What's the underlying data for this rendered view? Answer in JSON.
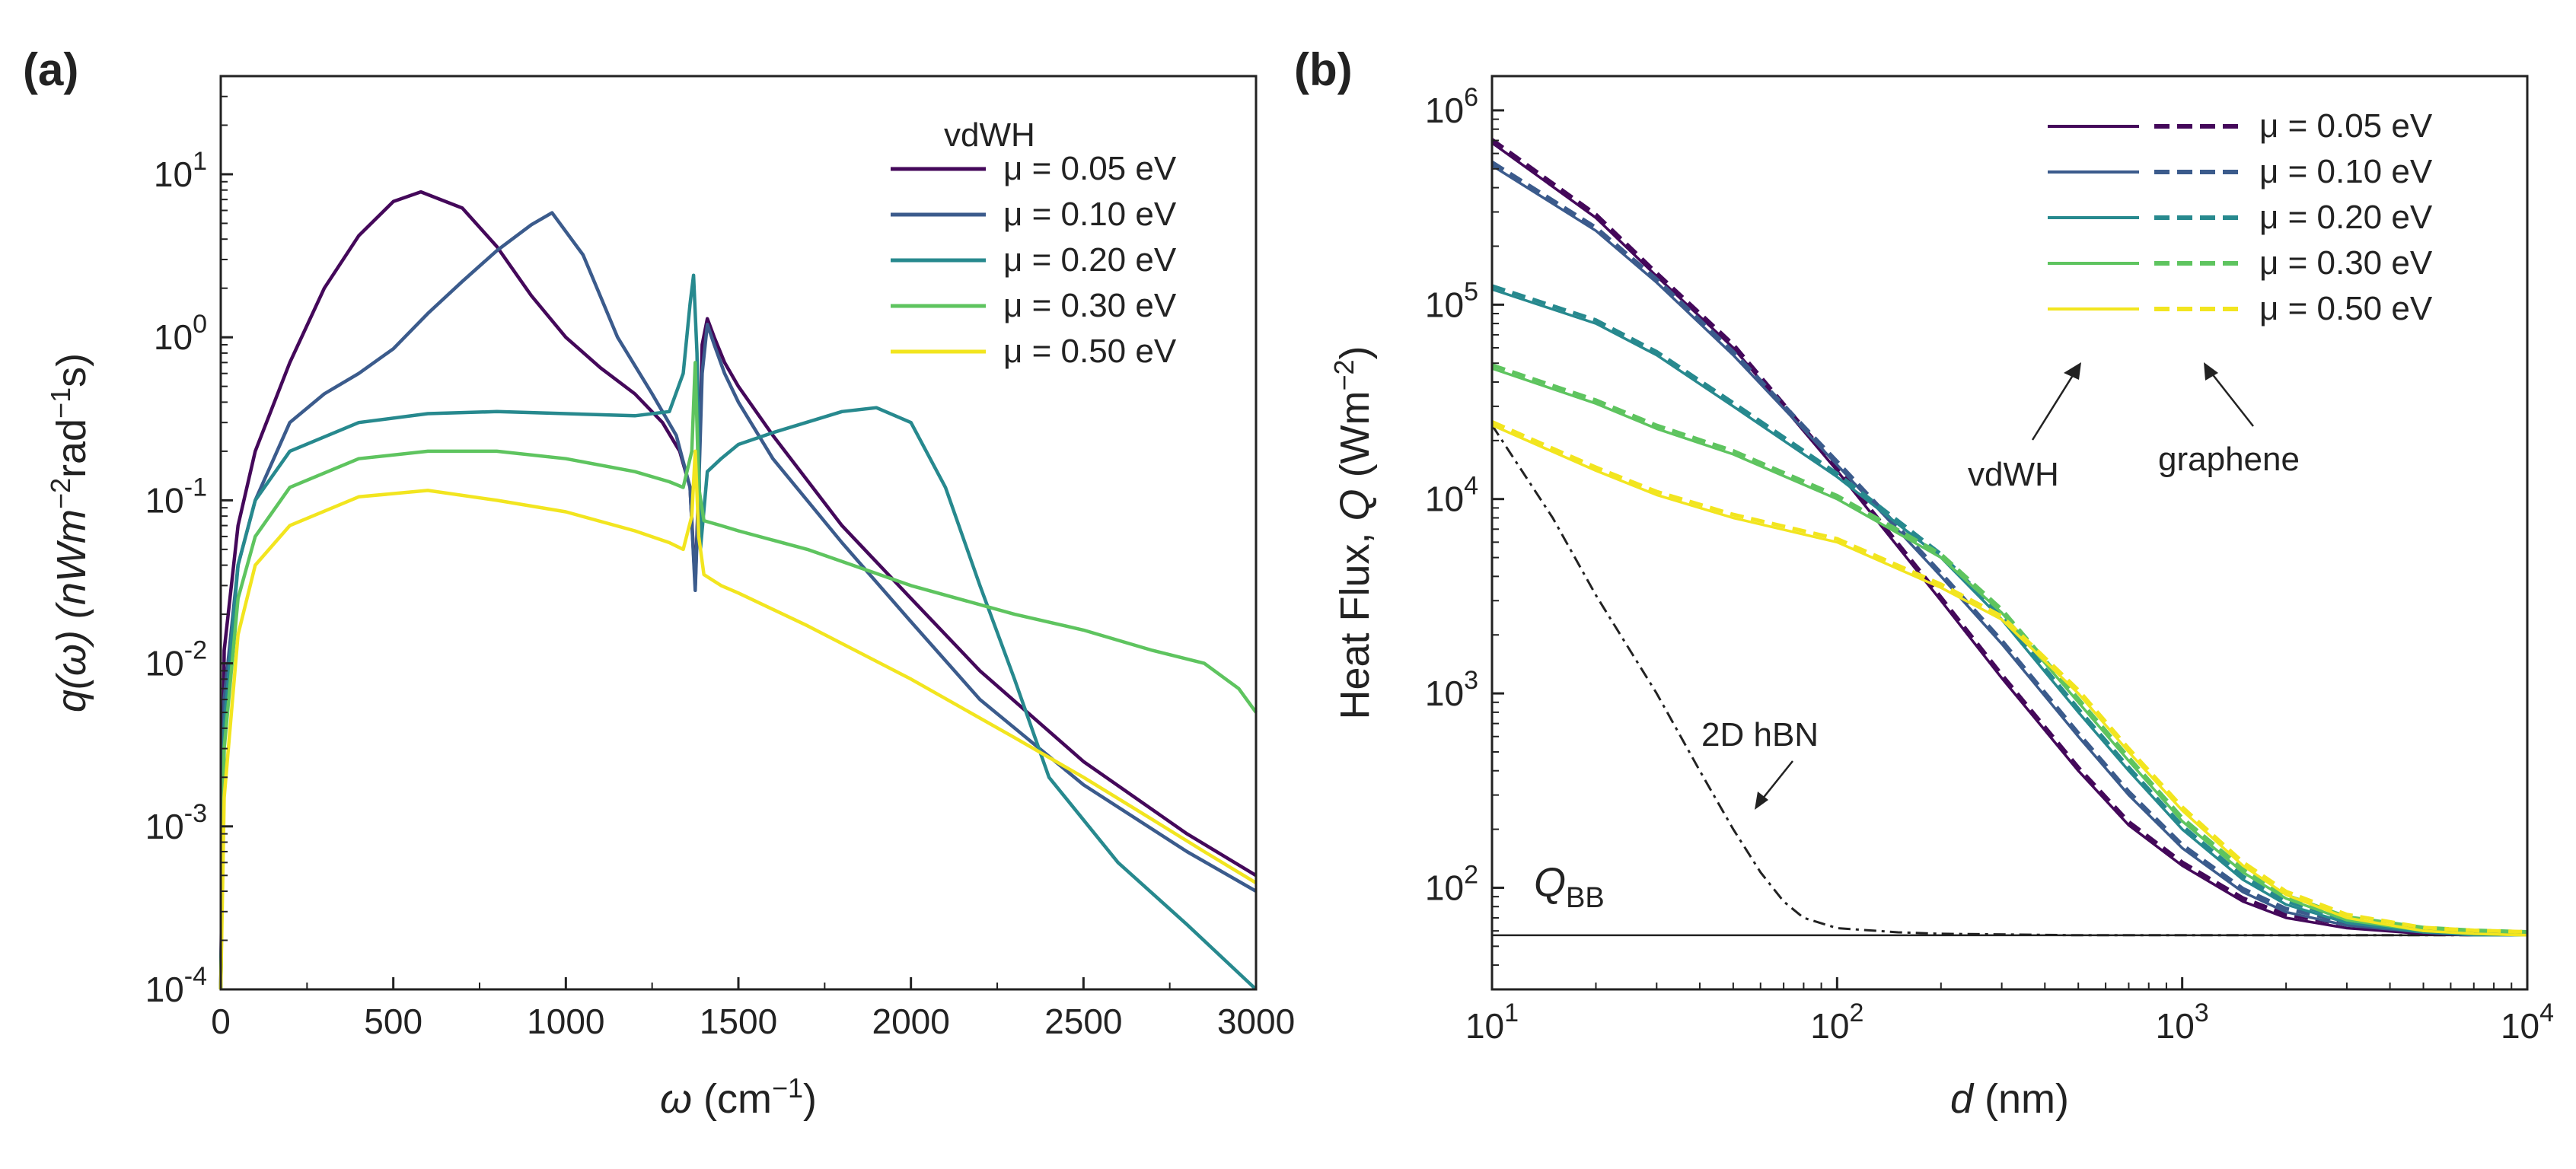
{
  "figure": {
    "panel_a_label": "(a)",
    "panel_b_label": "(b)"
  },
  "chart_data": [
    {
      "id": "a",
      "type": "line",
      "ylog": true,
      "xlabel": {
        "sym": "ω",
        "text": " (cm",
        "sup": "−1",
        "end": ")"
      },
      "ylabel": {
        "pre": "q(ω) (nWm",
        "sup1": "−2",
        "mid": "rad",
        "sup2": "−1",
        "end": "s)"
      },
      "xlim": [
        0,
        3000
      ],
      "ylim": [
        0.0001,
        40
      ],
      "xticks": [
        0,
        500,
        1000,
        1500,
        2000,
        2500,
        3000
      ],
      "xtick_labels": [
        "0",
        "500",
        "1000",
        "1500",
        "2000",
        "2500",
        "3000"
      ],
      "yticks": [
        0.0001,
        0.001,
        0.01,
        0.1,
        1,
        10
      ],
      "ytick_labels": [
        {
          "base": "10",
          "exp": "-4"
        },
        {
          "base": "10",
          "exp": "-3"
        },
        {
          "base": "10",
          "exp": "-2"
        },
        {
          "base": "10",
          "exp": "-1"
        },
        {
          "base": "10",
          "exp": "0"
        },
        {
          "base": "10",
          "exp": "1"
        }
      ],
      "legend_title": "vdWH",
      "series": [
        {
          "name": "μ = 0.05 eV",
          "color": "#44085a",
          "x": [
            0,
            10,
            50,
            100,
            200,
            300,
            400,
            500,
            580,
            700,
            800,
            900,
            1000,
            1100,
            1200,
            1280,
            1330,
            1360,
            1375,
            1385,
            1395,
            1410,
            1430,
            1460,
            1500,
            1600,
            1800,
            2000,
            2200,
            2500,
            2800,
            3000
          ],
          "y": [
            0.0001,
            0.012,
            0.07,
            0.2,
            0.7,
            2,
            4.2,
            6.8,
            7.8,
            6.2,
            3.6,
            1.8,
            1.0,
            0.65,
            0.45,
            0.3,
            0.2,
            0.12,
            0.03,
            0.13,
            0.9,
            1.3,
            1.0,
            0.7,
            0.5,
            0.25,
            0.07,
            0.025,
            0.009,
            0.0025,
            0.0009,
            0.0005
          ]
        },
        {
          "name": "μ = 0.10 eV",
          "color": "#3b5b8c",
          "x": [
            0,
            10,
            50,
            100,
            200,
            300,
            400,
            500,
            600,
            700,
            800,
            900,
            960,
            1050,
            1150,
            1250,
            1320,
            1360,
            1375,
            1385,
            1395,
            1410,
            1430,
            1460,
            1500,
            1600,
            1800,
            2000,
            2200,
            2500,
            2800,
            3000
          ],
          "y": [
            0.0001,
            0.006,
            0.04,
            0.1,
            0.3,
            0.45,
            0.6,
            0.85,
            1.4,
            2.2,
            3.4,
            4.9,
            5.8,
            3.2,
            1.0,
            0.45,
            0.25,
            0.12,
            0.028,
            0.12,
            0.6,
            1.2,
            0.9,
            0.6,
            0.4,
            0.18,
            0.055,
            0.018,
            0.006,
            0.0018,
            0.0007,
            0.0004
          ]
        },
        {
          "name": "μ = 0.20 eV",
          "color": "#27898e",
          "x": [
            0,
            10,
            50,
            100,
            200,
            400,
            600,
            800,
            1000,
            1200,
            1300,
            1340,
            1360,
            1370,
            1380,
            1390,
            1410,
            1450,
            1500,
            1600,
            1800,
            1900,
            2000,
            2100,
            2200,
            2300,
            2400,
            2600,
            2800,
            3000
          ],
          "y": [
            0.0001,
            0.004,
            0.04,
            0.1,
            0.2,
            0.3,
            0.34,
            0.35,
            0.34,
            0.33,
            0.35,
            0.6,
            1.6,
            2.4,
            0.8,
            0.05,
            0.15,
            0.18,
            0.22,
            0.26,
            0.35,
            0.37,
            0.3,
            0.12,
            0.03,
            0.008,
            0.002,
            0.0006,
            0.00025,
            0.0001
          ]
        },
        {
          "name": "μ = 0.30 eV",
          "color": "#5ec45f",
          "x": [
            0,
            10,
            50,
            100,
            200,
            400,
            600,
            800,
            1000,
            1200,
            1300,
            1340,
            1365,
            1375,
            1385,
            1400,
            1450,
            1500,
            1700,
            2000,
            2300,
            2500,
            2700,
            2850,
            2950,
            3000
          ],
          "y": [
            0.0001,
            0.003,
            0.025,
            0.06,
            0.12,
            0.18,
            0.2,
            0.2,
            0.18,
            0.15,
            0.13,
            0.12,
            0.2,
            0.7,
            0.12,
            0.075,
            0.07,
            0.065,
            0.05,
            0.03,
            0.02,
            0.016,
            0.012,
            0.01,
            0.007,
            0.005
          ]
        },
        {
          "name": "μ = 0.50 eV",
          "color": "#f2e51f",
          "x": [
            0,
            10,
            50,
            100,
            200,
            400,
            600,
            800,
            1000,
            1200,
            1300,
            1340,
            1365,
            1375,
            1385,
            1400,
            1450,
            1500,
            1700,
            2000,
            2300,
            2500,
            2700,
            2850,
            3000
          ],
          "y": [
            0.0001,
            0.0015,
            0.015,
            0.04,
            0.07,
            0.105,
            0.115,
            0.1,
            0.085,
            0.065,
            0.055,
            0.05,
            0.08,
            0.2,
            0.06,
            0.035,
            0.03,
            0.027,
            0.017,
            0.008,
            0.0035,
            0.002,
            0.0011,
            0.0007,
            0.00045
          ]
        }
      ]
    },
    {
      "id": "b",
      "type": "line",
      "xlog": true,
      "ylog": true,
      "xlabel": {
        "sym": "d",
        "text": " (nm)"
      },
      "ylabel": {
        "pre": "Heat Flux, ",
        "sym": "Q",
        "mid": " (Wm",
        "sup": "−2",
        "end": ")"
      },
      "xlim": [
        10,
        10000
      ],
      "ylim": [
        30,
        1500000
      ],
      "xticks": [
        10,
        100,
        1000,
        10000
      ],
      "xtick_labels": [
        {
          "base": "10",
          "exp": "1"
        },
        {
          "base": "10",
          "exp": "2"
        },
        {
          "base": "10",
          "exp": "3"
        },
        {
          "base": "10",
          "exp": "4"
        }
      ],
      "yticks": [
        100,
        1000,
        10000,
        100000,
        1000000
      ],
      "ytick_labels": [
        {
          "base": "10",
          "exp": "2"
        },
        {
          "base": "10",
          "exp": "3"
        },
        {
          "base": "10",
          "exp": "4"
        },
        {
          "base": "10",
          "exp": "5"
        },
        {
          "base": "10",
          "exp": "6"
        }
      ],
      "series": [
        {
          "name": "μ = 0.05 eV",
          "color": "#44085a",
          "x": [
            10,
            20,
            30,
            50,
            100,
            200,
            300,
            500,
            700,
            1000,
            1500,
            2000,
            3000,
            5000,
            7000,
            10000
          ],
          "y": [
            680000,
            280000,
            140000,
            60000,
            14000,
            3000,
            1200,
            400,
            210,
            130,
            85,
            70,
            62,
            58,
            57,
            57
          ]
        },
        {
          "name": "μ = 0.10 eV",
          "color": "#3b5b8c",
          "x": [
            10,
            20,
            30,
            50,
            100,
            200,
            300,
            500,
            700,
            1000,
            1500,
            2000,
            3000,
            5000,
            7000,
            10000
          ],
          "y": [
            520000,
            240000,
            130000,
            55000,
            15000,
            4000,
            1800,
            600,
            300,
            160,
            95,
            75,
            64,
            59,
            57,
            57
          ]
        },
        {
          "name": "μ = 0.20 eV",
          "color": "#27898e",
          "x": [
            10,
            20,
            30,
            50,
            100,
            200,
            300,
            500,
            700,
            1000,
            1500,
            2000,
            3000,
            5000,
            7000,
            10000
          ],
          "y": [
            120000,
            80000,
            55000,
            30000,
            13000,
            5000,
            2400,
            800,
            400,
            200,
            110,
            82,
            66,
            59,
            57,
            57
          ]
        },
        {
          "name": "μ = 0.30 eV",
          "color": "#5ec45f",
          "x": [
            10,
            20,
            30,
            50,
            100,
            200,
            300,
            500,
            700,
            1000,
            1500,
            2000,
            3000,
            5000,
            7000,
            10000
          ],
          "y": [
            47000,
            31000,
            23000,
            17000,
            10000,
            5000,
            2600,
            900,
            450,
            220,
            120,
            88,
            68,
            60,
            58,
            57
          ]
        },
        {
          "name": "μ = 0.50 eV",
          "color": "#f2e51f",
          "x": [
            10,
            20,
            30,
            50,
            100,
            200,
            300,
            500,
            700,
            1000,
            1500,
            2000,
            3000,
            5000,
            7000,
            10000
          ],
          "y": [
            24000,
            14000,
            10500,
            8000,
            6000,
            3500,
            2400,
            1000,
            500,
            250,
            130,
            92,
            70,
            60,
            58,
            57
          ]
        }
      ],
      "reference_lines": [
        {
          "name": "2D hBN",
          "x": [
            10,
            15,
            20,
            30,
            40,
            50,
            60,
            70,
            80,
            100,
            150,
            200,
            500,
            1000,
            10000
          ],
          "y": [
            24000,
            8000,
            3200,
            1000,
            400,
            200,
            120,
            85,
            70,
            62,
            59,
            58,
            57,
            57,
            57
          ]
        },
        {
          "name": "Q_BB",
          "value": 57
        }
      ],
      "legend_caption_solid": "vdWH",
      "legend_caption_dashed": "graphene",
      "annotations": {
        "hbn_label": "2D hBN",
        "qbb_sym": "Q",
        "qbb_sub": "BB"
      }
    }
  ]
}
